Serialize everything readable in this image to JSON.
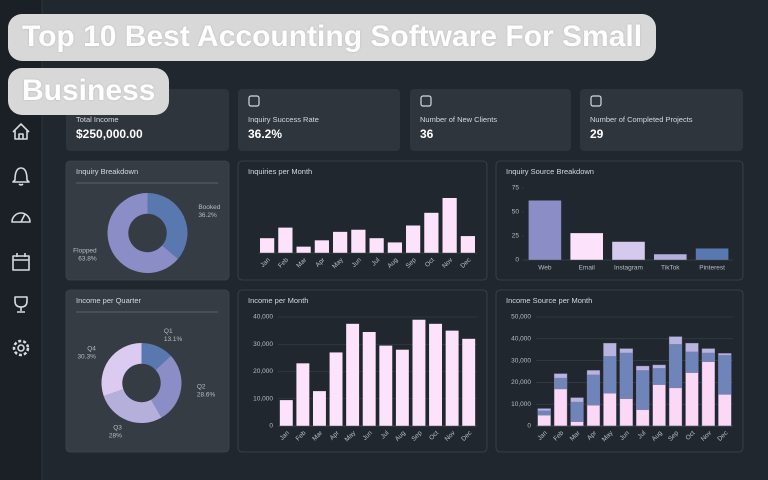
{
  "banner_title": "Top 10 Best Accounting Software For Small Business",
  "kpis": [
    {
      "label": "Total Income",
      "value": "$250,000.00"
    },
    {
      "label": "Inquiry Success Rate",
      "value": "36.2%"
    },
    {
      "label": "Number of New Clients",
      "value": "36"
    },
    {
      "label": "Number of Completed Projects",
      "value": "29"
    }
  ],
  "chart_data": [
    {
      "type": "donut",
      "title": "Inquiry Breakdown",
      "categories": [
        "Booked",
        "Flopped"
      ],
      "values": [
        36.2,
        63.8
      ],
      "value_labels": [
        "36.2%",
        "63.8%"
      ],
      "colors": [
        "#5a78b0",
        "#8b8ec6"
      ]
    },
    {
      "type": "bar",
      "title": "Inquiries per Month",
      "categories": [
        "Jan",
        "Feb",
        "Mar",
        "Apr",
        "May",
        "Jun",
        "Jul",
        "Aug",
        "Sep",
        "Oct",
        "Nov",
        "Dec"
      ],
      "values": [
        7,
        12,
        3,
        6,
        10,
        11,
        7,
        5,
        13,
        19,
        26,
        8
      ],
      "color": "#fde2fb"
    },
    {
      "type": "bar",
      "title": "Inquiry Source Breakdown",
      "categories": [
        "Web",
        "Email",
        "Instagram",
        "TikTok",
        "Pinterest"
      ],
      "values": [
        62,
        28,
        19,
        6,
        12
      ],
      "colors": [
        "#8b8ec6",
        "#fde2fb",
        "#d6c9ee",
        "#b5afdc",
        "#5a78b0"
      ],
      "ylim": [
        0,
        75
      ],
      "yticks": [
        0,
        25,
        50,
        75
      ]
    },
    {
      "type": "donut",
      "title": "Income per Quarter",
      "categories": [
        "Q1",
        "Q2",
        "Q3",
        "Q4"
      ],
      "values": [
        13.1,
        28.6,
        28,
        30.3
      ],
      "value_labels": [
        "13.1%",
        "28.6%",
        "28%",
        "30.3%"
      ],
      "colors": [
        "#5a78b0",
        "#8b8ec6",
        "#b5afdc",
        "#dccbf0"
      ]
    },
    {
      "type": "bar",
      "title": "Income per Month",
      "categories": [
        "Jan",
        "Feb",
        "Mar",
        "Apr",
        "May",
        "Jun",
        "Jul",
        "Aug",
        "Sep",
        "Oct",
        "Nov",
        "Dec"
      ],
      "values": [
        9500,
        23000,
        12800,
        27000,
        37500,
        34500,
        29500,
        28000,
        39000,
        37500,
        35000,
        32000
      ],
      "color": "#fde2fb",
      "ylim": [
        0,
        40000
      ],
      "yticks": [
        0,
        {
          "value": 10000,
          "label": "10,000"
        },
        {
          "value": 20000,
          "label": "20,000"
        },
        {
          "value": 30000,
          "label": "30,000"
        },
        {
          "value": 40000,
          "label": "40,000"
        }
      ],
      "grid": true
    },
    {
      "type": "stacked_bar",
      "title": "Income Source per Month",
      "categories": [
        "Jan",
        "Feb",
        "Mar",
        "Apr",
        "May",
        "Jun",
        "Jul",
        "Aug",
        "Sep",
        "Oct",
        "Nov",
        "Dec"
      ],
      "series": [
        {
          "color": "#fbd8f6",
          "values": [
            5000,
            17000,
            2000,
            9500,
            15000,
            12500,
            7500,
            19000,
            17500,
            24500,
            29500,
            14500
          ]
        },
        {
          "color": "#6f84b8",
          "values": [
            2000,
            5000,
            9000,
            14000,
            17000,
            21000,
            18000,
            7500,
            20000,
            9500,
            4000,
            18000
          ]
        },
        {
          "color": "#b9b3e0",
          "values": [
            1000,
            2000,
            2000,
            2000,
            6000,
            2000,
            2000,
            1500,
            3500,
            4000,
            2000,
            800
          ]
        }
      ],
      "ylim": [
        0,
        50000
      ],
      "yticks": [
        0,
        {
          "value": 10000,
          "label": "10,000"
        },
        {
          "value": 20000,
          "label": "20,000"
        },
        {
          "value": 30000,
          "label": "30,000"
        },
        {
          "value": 40000,
          "label": "40,000"
        },
        {
          "value": 50000,
          "label": "50,000"
        }
      ],
      "grid": true
    }
  ]
}
